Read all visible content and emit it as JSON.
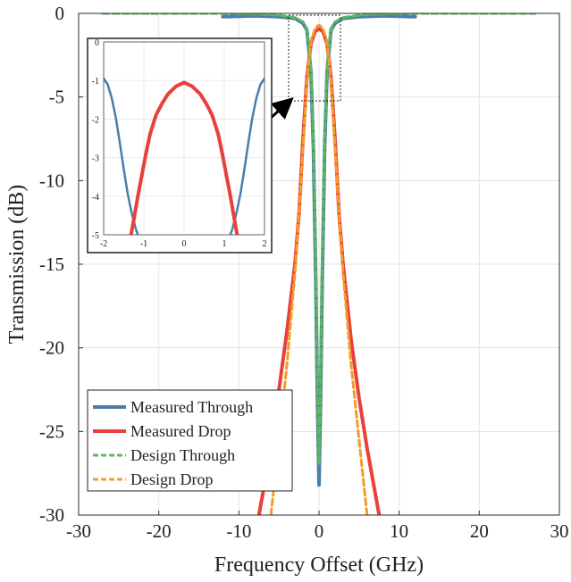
{
  "chart_data": {
    "type": "line",
    "xlabel": "Frequency Offset (GHz)",
    "ylabel": "Transmission (dB)",
    "xlim": [
      -30,
      30
    ],
    "ylim": [
      -30,
      0
    ],
    "x_ticks": [
      "-30",
      "-20",
      "-10",
      "0",
      "10",
      "20",
      "30"
    ],
    "y_ticks": [
      "0",
      "-5",
      "-10",
      "-15",
      "-20",
      "-25",
      "-30"
    ],
    "grid": true,
    "legend_position": "bottom-left",
    "series": [
      {
        "name": "Measured Through",
        "color": "#4a7ea9",
        "style": "solid",
        "x": [
          -12,
          -8,
          -5,
          -3,
          -2,
          -1.5,
          -1,
          -0.7,
          -0.4,
          -0.2,
          0,
          0.2,
          0.4,
          0.7,
          1,
          1.5,
          2,
          3,
          5,
          8,
          12
        ],
        "y": [
          -0.2,
          -0.15,
          -0.2,
          -0.3,
          -0.6,
          -1,
          -3.5,
          -8,
          -16,
          -23,
          -28.2,
          -23,
          -16,
          -8,
          -3.5,
          -1,
          -0.6,
          -0.3,
          -0.2,
          -0.15,
          -0.2
        ]
      },
      {
        "name": "Measured Drop",
        "color": "#e8403b",
        "style": "solid",
        "x": [
          -7.5,
          -6,
          -5,
          -4,
          -3,
          -2.5,
          -2,
          -1.5,
          -1,
          -0.5,
          0,
          0.5,
          1,
          1.5,
          2,
          2.5,
          3,
          4,
          5,
          6,
          7.5
        ],
        "y": [
          -30,
          -26,
          -22.5,
          -19,
          -15,
          -12,
          -7.5,
          -3.8,
          -1.8,
          -1.1,
          -0.9,
          -1.1,
          -1.8,
          -3.8,
          -7.5,
          -12,
          -15,
          -19.5,
          -23,
          -26,
          -30
        ]
      },
      {
        "name": "Design Through",
        "color": "#5cb85c",
        "style": "dashed",
        "x": [
          -27,
          -10,
          -5,
          -3,
          -2,
          -1.5,
          -1,
          -0.7,
          -0.4,
          -0.2,
          0,
          0.2,
          0.4,
          0.7,
          1,
          1.5,
          2,
          3,
          5,
          10,
          27
        ],
        "y": [
          0,
          0,
          -0.1,
          -0.25,
          -0.5,
          -0.9,
          -3.2,
          -7.5,
          -15,
          -22,
          -27,
          -22,
          -15,
          -7.5,
          -3.2,
          -0.9,
          -0.5,
          -0.25,
          -0.1,
          0,
          0
        ]
      },
      {
        "name": "Design Drop",
        "color": "#f39c28",
        "style": "dashed",
        "x": [
          -6,
          -5,
          -4,
          -3,
          -2.5,
          -2,
          -1.5,
          -1,
          -0.5,
          0,
          0.5,
          1,
          1.5,
          2,
          2.5,
          3,
          4,
          5,
          6
        ],
        "y": [
          -30,
          -25.5,
          -21,
          -15.5,
          -12,
          -8,
          -4,
          -1.7,
          -0.9,
          -0.7,
          -0.9,
          -1.7,
          -4,
          -8,
          -12,
          -15.5,
          -21,
          -25.5,
          -30
        ]
      }
    ],
    "inset": {
      "xlim": [
        -2,
        2
      ],
      "ylim": [
        -5,
        0
      ],
      "x_ticks": [
        "-2",
        "-1",
        "0",
        "1",
        "2"
      ],
      "y_ticks": [
        "0",
        "-1",
        "-2",
        "-3",
        "-4",
        "-5"
      ],
      "series": [
        {
          "name": "Measured Through",
          "x": [
            -2,
            -1.9,
            -1.8,
            -1.7,
            -1.6,
            -1.5,
            -1.4,
            -1.3,
            -1.2,
            -1.15
          ],
          "y": [
            -0.95,
            -1.1,
            -1.45,
            -1.95,
            -2.6,
            -3.3,
            -3.95,
            -4.45,
            -4.85,
            -5
          ]
        },
        {
          "name": "Measured Through",
          "x": [
            1.15,
            1.2,
            1.3,
            1.4,
            1.5,
            1.6,
            1.7,
            1.8,
            1.9,
            2
          ],
          "y": [
            -5,
            -4.85,
            -4.45,
            -3.95,
            -3.3,
            -2.6,
            -1.95,
            -1.45,
            -1.1,
            -0.95
          ]
        },
        {
          "name": "Measured Drop",
          "x": [
            -1.32,
            -1.25,
            -1.15,
            -1.05,
            -0.95,
            -0.85,
            -0.7,
            -0.55,
            -0.4,
            -0.2,
            0,
            0.2,
            0.4,
            0.55,
            0.7,
            0.85,
            0.95,
            1.05,
            1.15,
            1.25,
            1.32
          ],
          "y": [
            -5,
            -4.6,
            -4.0,
            -3.45,
            -2.9,
            -2.4,
            -1.9,
            -1.6,
            -1.35,
            -1.15,
            -1.05,
            -1.15,
            -1.35,
            -1.6,
            -1.9,
            -2.4,
            -2.9,
            -3.45,
            -4.0,
            -4.6,
            -5
          ]
        }
      ]
    }
  }
}
